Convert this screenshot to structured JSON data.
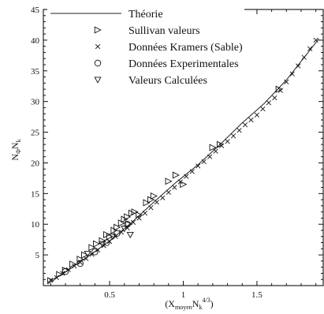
{
  "chart_data": {
    "type": "scatter",
    "xlim": [
      0.05,
      1.95
    ],
    "ylim": [
      0,
      45
    ],
    "x_ticks": [
      0.5,
      1,
      1.5
    ],
    "x_tick_labels": [
      "0.5",
      "1",
      "1.5"
    ],
    "y_ticks": [
      5,
      10,
      15,
      20,
      25,
      30,
      35,
      40,
      45
    ],
    "y_tick_labels": [
      "5",
      "10",
      "15",
      "20",
      "25",
      "30",
      "35",
      "40",
      "45"
    ],
    "xlabel": {
      "prefix": "(X",
      "sub1": "moyen",
      "mid": "N",
      "sub2": "k",
      "sup": "4/3",
      "suffix": ")"
    },
    "ylabel": {
      "a": "N",
      "sub1": "Φ",
      "b": "N",
      "sub2": "k"
    },
    "grid": false,
    "legend_position": "top-left",
    "series": [
      {
        "name": "Théorie",
        "marker": "line",
        "x": [
          0.08,
          0.2,
          0.35,
          0.5,
          0.65,
          0.8,
          0.95,
          1.1,
          1.25,
          1.4,
          1.55,
          1.7,
          1.92
        ],
        "y": [
          0.5,
          2.2,
          4.7,
          7.3,
          10.3,
          13.6,
          16.8,
          19.7,
          23.0,
          26.5,
          29.7,
          33.5,
          40.2
        ]
      },
      {
        "name": "Sullivan valeurs",
        "marker": "triangle-right",
        "x": [
          0.1,
          0.16,
          0.2,
          0.25,
          0.3,
          0.33,
          0.38,
          0.41,
          0.45,
          0.48,
          0.5,
          0.53,
          0.55,
          0.58,
          0.6,
          0.62,
          0.63,
          0.65,
          0.67,
          0.7,
          0.75,
          0.78,
          0.8,
          0.9,
          0.95,
          1.0,
          1.2,
          1.25,
          1.65
        ],
        "y": [
          0.8,
          1.8,
          2.5,
          3.5,
          4.3,
          5.0,
          6.2,
          6.8,
          7.3,
          8.3,
          8.0,
          9.0,
          9.5,
          10.2,
          10.8,
          11.2,
          10.0,
          11.8,
          12.0,
          11.5,
          13.5,
          14.0,
          14.6,
          17.0,
          18.0,
          16.5,
          22.5,
          23.0,
          32.0
        ]
      },
      {
        "name": "Données Kramers (Sable)",
        "marker": "x",
        "x": [
          0.1,
          0.14,
          0.18,
          0.22,
          0.26,
          0.3,
          0.34,
          0.38,
          0.42,
          0.46,
          0.5,
          0.54,
          0.58,
          0.62,
          0.66,
          0.7,
          0.74,
          0.78,
          0.82,
          0.86,
          0.9,
          0.94,
          0.98,
          1.02,
          1.06,
          1.1,
          1.14,
          1.18,
          1.22,
          1.26,
          1.3,
          1.34,
          1.38,
          1.42,
          1.46,
          1.5,
          1.54,
          1.58,
          1.62,
          1.66,
          1.7,
          1.74,
          1.78,
          1.82,
          1.86,
          1.9
        ],
        "y": [
          0.9,
          1.3,
          2.0,
          2.6,
          3.2,
          3.8,
          4.4,
          5.1,
          5.8,
          6.5,
          7.2,
          8.0,
          8.7,
          9.4,
          10.3,
          11.0,
          11.8,
          12.7,
          13.6,
          14.3,
          15.2,
          16.0,
          16.9,
          17.8,
          18.6,
          19.5,
          20.2,
          21.0,
          21.9,
          22.8,
          23.5,
          24.4,
          25.3,
          26.2,
          27.0,
          27.8,
          28.8,
          29.8,
          30.6,
          31.8,
          33.2,
          34.5,
          35.8,
          37.2,
          38.6,
          40.0
        ]
      },
      {
        "name": "Données Experimentales",
        "marker": "circle",
        "x": [
          0.2,
          0.3,
          0.4,
          0.48,
          0.55,
          0.62
        ],
        "y": [
          2.3,
          3.6,
          5.5,
          7.0,
          8.5,
          10.0
        ]
      },
      {
        "name": "Valeurs Calculées",
        "marker": "triangle-down",
        "x": [
          0.35,
          0.45,
          0.52,
          0.6,
          0.64
        ],
        "y": [
          5.2,
          6.8,
          8.0,
          9.3,
          8.3
        ]
      }
    ]
  }
}
